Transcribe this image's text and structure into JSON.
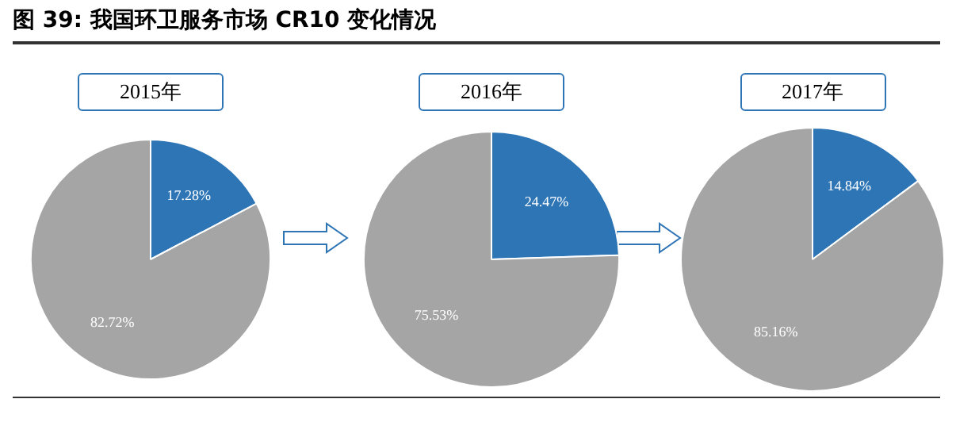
{
  "chart_data": [
    {
      "type": "pie",
      "title": "2015年",
      "annotations": [
        "图 39: 我国环卫服务市场 CR10 变化情况"
      ],
      "categories": [
        null,
        null
      ],
      "values": [
        17.28,
        82.72
      ],
      "colors": [
        "#2e75b6",
        "#a5a5a5"
      ],
      "value_labels": [
        "17.28%",
        "82.72%"
      ],
      "legend": false
    },
    {
      "type": "pie",
      "title": "2016年",
      "categories": [
        null,
        null
      ],
      "values": [
        24.47,
        75.53
      ],
      "colors": [
        "#2e75b6",
        "#a5a5a5"
      ],
      "value_labels": [
        "24.47%",
        "75.53%"
      ],
      "legend": false
    },
    {
      "type": "pie",
      "title": "2017年",
      "categories": [
        null,
        null
      ],
      "values": [
        14.84,
        85.16
      ],
      "colors": [
        "#2e75b6",
        "#a5a5a5"
      ],
      "value_labels": [
        "14.84%",
        "85.16%"
      ],
      "legend": false
    }
  ]
}
